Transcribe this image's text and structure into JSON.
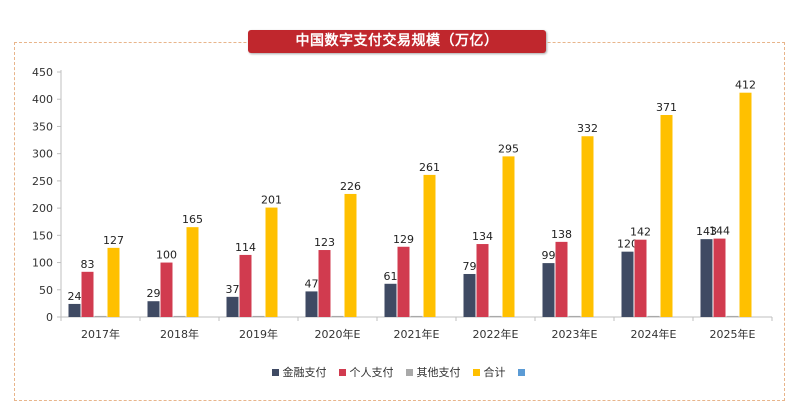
{
  "chart_data": {
    "type": "bar",
    "title": "中国数字支付交易规模（万亿）",
    "xlabel": "",
    "ylabel": "",
    "ylim": [
      0,
      450
    ],
    "yticks": [
      0,
      50,
      100,
      150,
      200,
      250,
      300,
      350,
      400,
      450
    ],
    "categories": [
      "2017年",
      "2018年",
      "2019年",
      "2020年E",
      "2021年E",
      "2022年E",
      "2023年E",
      "2024年E",
      "2025年E"
    ],
    "series": [
      {
        "name": "金融支付",
        "color": "#3f4a63",
        "values": [
          24,
          29,
          37,
          47,
          61,
          79,
          99,
          120,
          143
        ],
        "show_labels": true
      },
      {
        "name": "个人支付",
        "color": "#d13b4f",
        "values": [
          83,
          100,
          114,
          123,
          129,
          134,
          138,
          142,
          144
        ],
        "show_labels": true
      },
      {
        "name": "其他支付",
        "color": "#a9a9a9",
        "values": [
          2,
          2,
          2,
          2,
          2,
          2,
          2,
          2,
          2
        ],
        "show_labels": false
      },
      {
        "name": "合计",
        "color": "#ffc000",
        "values": [
          127,
          165,
          201,
          226,
          261,
          295,
          332,
          371,
          412
        ],
        "show_labels": true
      },
      {
        "name": "",
        "color": "#5b9bd5",
        "values": [
          0,
          0,
          0,
          0,
          0,
          0,
          0,
          0,
          0
        ],
        "show_labels": false
      }
    ],
    "grid": false,
    "legend_position": "bottom"
  }
}
